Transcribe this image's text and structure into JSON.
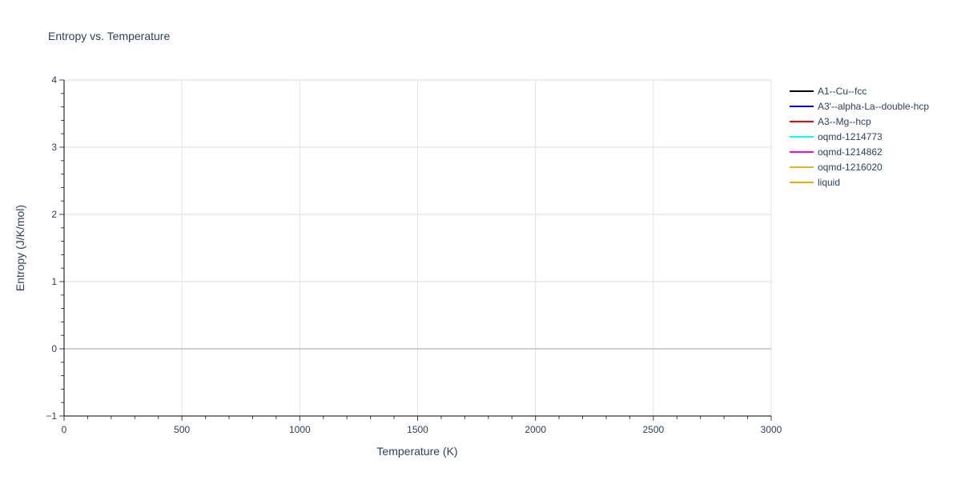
{
  "chart_data": {
    "type": "line",
    "title": "Entropy vs. Temperature",
    "xlabel": "Temperature (K)",
    "ylabel": "Entropy (J/K/mol)",
    "xlim": [
      0,
      3000
    ],
    "ylim": [
      -1,
      4
    ],
    "x_ticks": [
      0,
      500,
      1000,
      1500,
      2000,
      2500,
      3000
    ],
    "x_tick_labels": [
      "0",
      "500",
      "1000",
      "1500",
      "2000",
      "2500",
      "3000"
    ],
    "y_ticks": [
      -1,
      0,
      1,
      2,
      3,
      4
    ],
    "y_tick_labels": [
      "−1",
      "0",
      "1",
      "2",
      "3",
      "4"
    ],
    "x_minor_step": 100,
    "y_minor_step": 0.2,
    "grid": true,
    "legend_position": "top-right",
    "series": [
      {
        "name": "A1--Cu--fcc",
        "color": "#000000",
        "x": [],
        "y": []
      },
      {
        "name": "A3'--alpha-La--double-hcp",
        "color": "#0000ff",
        "x": [],
        "y": []
      },
      {
        "name": "A3--Mg--hcp",
        "color": "#ff0000",
        "x": [],
        "y": []
      },
      {
        "name": "oqmd-1214773",
        "color": "#00ffff",
        "x": [],
        "y": []
      },
      {
        "name": "oqmd-1214862",
        "color": "#ff00ff",
        "x": [],
        "y": []
      },
      {
        "name": "oqmd-1216020",
        "color": "#e6b422",
        "x": [],
        "y": []
      },
      {
        "name": "liquid",
        "color": "#ffa500",
        "x": [],
        "y": []
      }
    ]
  }
}
